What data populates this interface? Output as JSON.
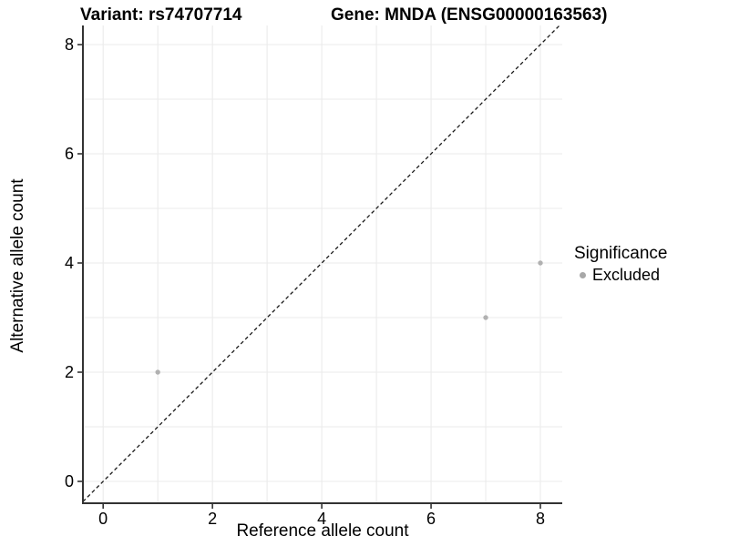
{
  "chart_data": {
    "type": "scatter",
    "title_left": "Variant: rs74707714",
    "title_right": "Gene: MNDA (ENSG00000163563)",
    "xlabel": "Reference allele count",
    "ylabel": "Alternative allele count",
    "xlim": [
      -0.37,
      8.4
    ],
    "ylim": [
      -0.4,
      8.35
    ],
    "x_ticks": [
      0,
      2,
      4,
      6,
      8
    ],
    "y_ticks": [
      0,
      2,
      4,
      6,
      8
    ],
    "grid_ticks_x": [
      0,
      1,
      2,
      3,
      4,
      5,
      6,
      7,
      8
    ],
    "grid_ticks_y": [
      0,
      1,
      2,
      3,
      4,
      5,
      6,
      7,
      8
    ],
    "grid": true,
    "series": [
      {
        "name": "Excluded",
        "color": "#b1b1b1",
        "points": [
          {
            "x": 1,
            "y": 2
          },
          {
            "x": 7,
            "y": 3
          },
          {
            "x": 8,
            "y": 4
          }
        ]
      }
    ],
    "identity_line": {
      "slope": 1,
      "intercept": 0,
      "style": "dashed",
      "color": "#1a1a1a"
    },
    "legend": {
      "title": "Significance",
      "position": "right",
      "items": [
        {
          "label": "Excluded",
          "color": "#a8a8a8"
        }
      ]
    },
    "colors": {
      "gridline": "#ebebeb",
      "axis_line": "#333333",
      "tick_mark": "#333333",
      "text": "#000000",
      "background": "#ffffff"
    }
  }
}
